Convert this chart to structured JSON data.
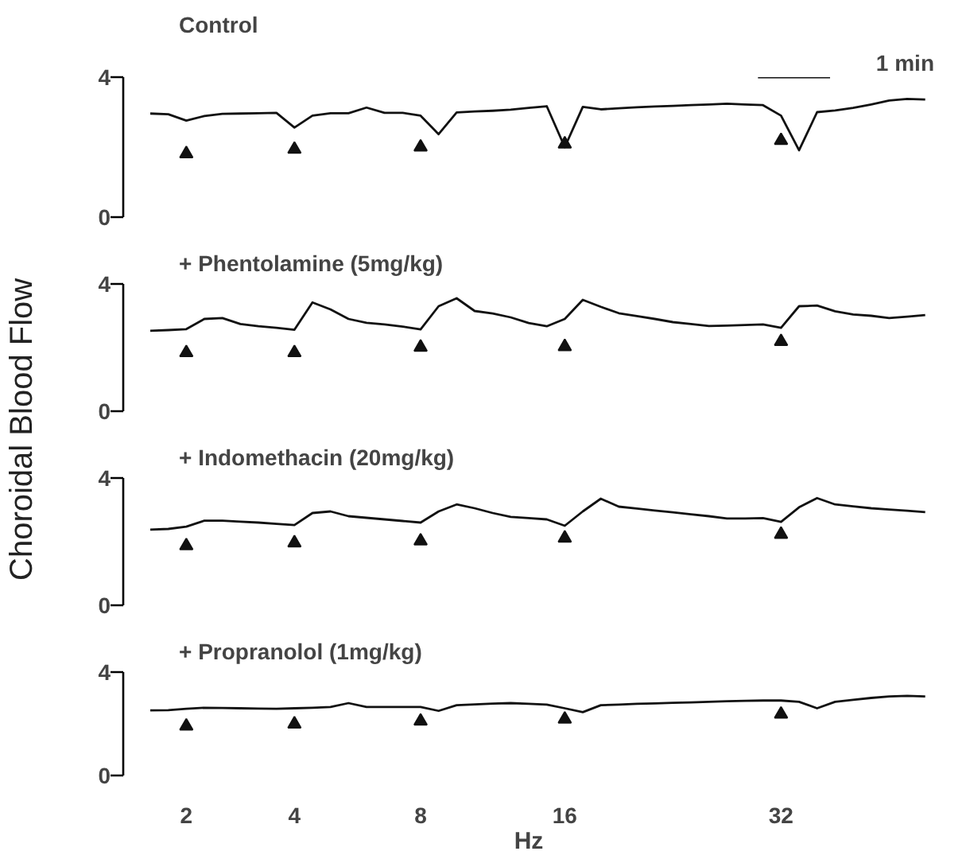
{
  "chart_data": [
    {
      "type": "line",
      "title": "Control",
      "annotations": [
        "1 min"
      ],
      "ylim": [
        0,
        4
      ],
      "yticks": [
        0,
        4
      ],
      "tick_labels": "y",
      "grid": false,
      "categories": [
        null,
        null,
        null,
        null,
        null,
        null,
        null,
        null,
        null,
        null,
        null,
        null,
        null,
        null,
        null,
        null,
        null,
        null,
        null,
        null,
        null,
        null,
        null,
        null,
        null,
        null,
        null,
        null,
        null,
        null,
        null,
        null,
        null,
        null,
        null,
        null,
        null,
        null,
        null,
        null,
        null,
        null,
        null,
        null
      ],
      "series": [
        {
          "color": "#111111",
          "values": [
            2.96,
            2.94,
            2.76,
            2.89,
            2.95,
            2.96,
            2.97,
            2.98,
            2.56,
            2.9,
            2.97,
            2.97,
            3.13,
            2.98,
            2.98,
            2.9,
            2.37,
            2.99,
            3.02,
            3.04,
            3.07,
            3.12,
            3.17,
            2.0,
            3.15,
            3.08,
            3.11,
            3.14,
            3.16,
            3.18,
            3.2,
            3.22,
            3.24,
            3.22,
            3.2,
            2.9,
            1.91,
            3.0,
            3.05,
            3.12,
            3.22,
            3.33,
            3.38,
            3.36
          ]
        },
        {
          "type": "scatter",
          "marker": "triangle",
          "color": "#111111",
          "values": [
            null,
            null,
            1.81,
            null,
            null,
            null,
            null,
            null,
            1.94,
            null,
            null,
            null,
            null,
            null,
            null,
            2.0,
            null,
            null,
            null,
            null,
            null,
            null,
            null,
            2.09,
            null,
            null,
            null,
            null,
            null,
            null,
            null,
            null,
            null,
            null,
            null,
            2.19,
            null,
            null,
            null,
            null,
            null,
            null,
            null,
            null
          ]
        }
      ]
    },
    {
      "type": "line",
      "title": "+ Phentolamine (5mg/kg)",
      "ylabel": "Choroidal Blood Flow",
      "ylim": [
        0,
        4
      ],
      "yticks": [
        0,
        4
      ],
      "tick_labels": "y",
      "grid": false,
      "categories": [
        null,
        null,
        null,
        null,
        null,
        null,
        null,
        null,
        null,
        null,
        null,
        null,
        null,
        null,
        null,
        null,
        null,
        null,
        null,
        null,
        null,
        null,
        null,
        null,
        null,
        null,
        null,
        null,
        null,
        null,
        null,
        null,
        null,
        null,
        null,
        null,
        null,
        null,
        null,
        null,
        null,
        null,
        null,
        null
      ],
      "series": [
        {
          "color": "#111111",
          "values": [
            2.53,
            2.55,
            2.58,
            2.9,
            2.93,
            2.74,
            2.67,
            2.62,
            2.56,
            3.42,
            3.2,
            2.9,
            2.78,
            2.73,
            2.66,
            2.57,
            3.3,
            3.55,
            3.15,
            3.07,
            2.95,
            2.77,
            2.67,
            2.9,
            3.5,
            3.28,
            3.08,
            2.99,
            2.9,
            2.8,
            2.74,
            2.68,
            2.69,
            2.71,
            2.73,
            2.62,
            3.3,
            3.32,
            3.14,
            3.04,
            3.0,
            2.93,
            2.97,
            3.02
          ]
        },
        {
          "type": "scatter",
          "marker": "triangle",
          "color": "#111111",
          "values": [
            null,
            null,
            1.84,
            null,
            null,
            null,
            null,
            null,
            1.84,
            null,
            null,
            null,
            null,
            null,
            null,
            2.01,
            null,
            null,
            null,
            null,
            null,
            null,
            null,
            2.03,
            null,
            null,
            null,
            null,
            null,
            null,
            null,
            null,
            null,
            null,
            null,
            2.19,
            null,
            null,
            null,
            null,
            null,
            null,
            null,
            null
          ]
        }
      ]
    },
    {
      "type": "line",
      "title": "+ Indomethacin (20mg/kg)",
      "ylim": [
        0,
        4
      ],
      "yticks": [
        0,
        4
      ],
      "tick_labels": "y",
      "grid": false,
      "categories": [
        null,
        null,
        null,
        null,
        null,
        null,
        null,
        null,
        null,
        null,
        null,
        null,
        null,
        null,
        null,
        null,
        null,
        null,
        null,
        null,
        null,
        null,
        null,
        null,
        null,
        null,
        null,
        null,
        null,
        null,
        null,
        null,
        null,
        null,
        null,
        null,
        null,
        null,
        null,
        null,
        null,
        null,
        null,
        null
      ],
      "series": [
        {
          "color": "#111111",
          "values": [
            2.38,
            2.4,
            2.47,
            2.66,
            2.66,
            2.63,
            2.6,
            2.56,
            2.52,
            2.9,
            2.95,
            2.8,
            2.75,
            2.7,
            2.65,
            2.6,
            2.95,
            3.17,
            3.05,
            2.9,
            2.78,
            2.74,
            2.7,
            2.5,
            2.95,
            3.35,
            3.1,
            3.04,
            2.98,
            2.92,
            2.86,
            2.8,
            2.73,
            2.73,
            2.74,
            2.62,
            3.08,
            3.37,
            3.17,
            3.11,
            3.05,
            3.01,
            2.97,
            2.93
          ]
        },
        {
          "type": "scatter",
          "marker": "triangle",
          "color": "#111111",
          "values": [
            null,
            null,
            1.87,
            null,
            null,
            null,
            null,
            null,
            1.96,
            null,
            null,
            null,
            null,
            null,
            null,
            2.02,
            null,
            null,
            null,
            null,
            null,
            null,
            null,
            2.11,
            null,
            null,
            null,
            null,
            null,
            null,
            null,
            null,
            null,
            null,
            null,
            2.23,
            null,
            null,
            null,
            null,
            null,
            null,
            null,
            null
          ]
        }
      ]
    },
    {
      "type": "line",
      "title": "+ Propranolol (1mg/kg)",
      "xlabel": "Hz",
      "ylim": [
        0,
        4
      ],
      "yticks": [
        0,
        4
      ],
      "grid": false,
      "categories": [
        null,
        null,
        "2",
        null,
        null,
        null,
        null,
        null,
        "4",
        null,
        null,
        null,
        null,
        null,
        null,
        "8",
        null,
        null,
        null,
        null,
        null,
        null,
        null,
        "16",
        null,
        null,
        null,
        null,
        null,
        null,
        null,
        null,
        null,
        null,
        null,
        "32",
        null,
        null,
        null,
        null,
        null,
        null,
        null,
        null
      ],
      "series": [
        {
          "color": "#111111",
          "values": [
            2.52,
            2.53,
            2.58,
            2.62,
            2.61,
            2.6,
            2.59,
            2.58,
            2.6,
            2.62,
            2.65,
            2.8,
            2.65,
            2.65,
            2.65,
            2.65,
            2.5,
            2.72,
            2.75,
            2.78,
            2.8,
            2.77,
            2.74,
            2.6,
            2.45,
            2.72,
            2.74,
            2.77,
            2.79,
            2.81,
            2.83,
            2.85,
            2.87,
            2.89,
            2.9,
            2.9,
            2.85,
            2.6,
            2.85,
            2.93,
            3.0,
            3.06,
            3.08,
            3.06
          ]
        },
        {
          "type": "scatter",
          "marker": "triangle",
          "color": "#111111",
          "values": [
            null,
            null,
            1.91,
            null,
            null,
            null,
            null,
            null,
            1.99,
            null,
            null,
            null,
            null,
            null,
            null,
            2.1,
            null,
            null,
            null,
            null,
            null,
            null,
            null,
            2.18,
            null,
            null,
            null,
            null,
            null,
            null,
            null,
            null,
            null,
            null,
            null,
            2.37,
            null,
            null,
            null,
            null,
            null,
            null,
            null,
            null
          ]
        }
      ]
    }
  ]
}
